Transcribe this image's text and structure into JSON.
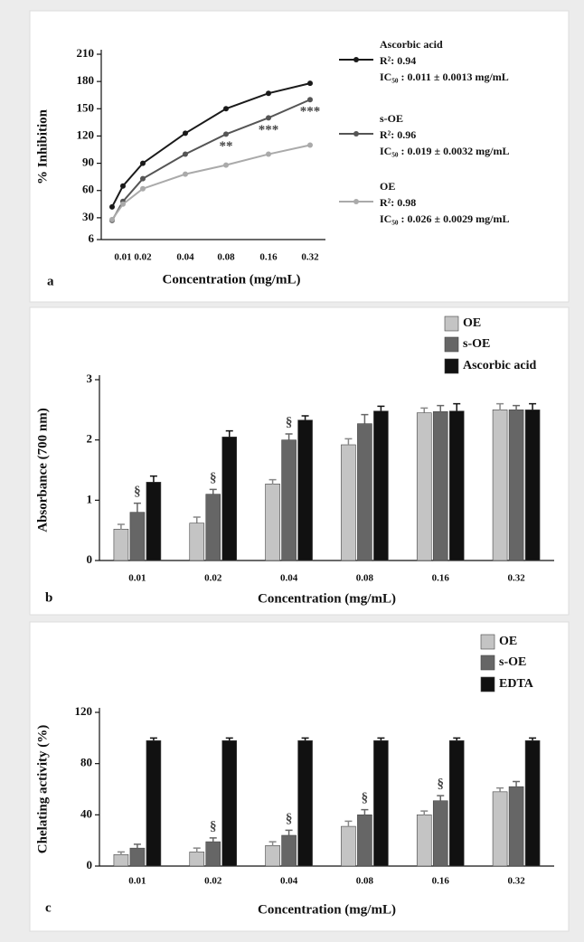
{
  "chart_data": [
    {
      "type": "line",
      "panel_label": "a",
      "x_label": "Concentration (mg/mL)",
      "y_label": "% Inhibition",
      "categories": [
        null,
        "0.01",
        "0.02",
        "0.04",
        "0.08",
        "0.16",
        "0.32"
      ],
      "ylim": [
        6,
        210
      ],
      "yticks": [
        6,
        30,
        60,
        90,
        120,
        150,
        180,
        210
      ],
      "series": [
        {
          "name": "Ascorbic acid",
          "color": "#1a1a1a",
          "notes": [
            "R²: 0.94",
            "IC₅₀ : 0.011 ± 0.0013 mg/mL"
          ],
          "values": [
            42,
            65,
            90,
            123,
            150,
            167,
            178
          ]
        },
        {
          "name": "s-OE",
          "color": "#555555",
          "notes": [
            "R²: 0.96",
            "IC₅₀ : 0.019 ± 0.0032 mg/mL"
          ],
          "values": [
            27,
            48,
            73,
            100,
            122,
            140,
            160
          ]
        },
        {
          "name": "OE",
          "color": "#aaaaaa",
          "notes": [
            "R²: 0.98",
            "IC₅₀ : 0.026 ± 0.0029 mg/mL"
          ],
          "values": [
            28,
            45,
            62,
            78,
            88,
            100,
            110
          ]
        }
      ],
      "annotations": [
        {
          "text": "**",
          "series": 1,
          "index": 4
        },
        {
          "text": "***",
          "series": 1,
          "index": 5
        },
        {
          "text": "***",
          "series": 1,
          "index": 6
        }
      ]
    },
    {
      "type": "bar",
      "panel_label": "b",
      "x_label": "Concentration (mg/mL)",
      "y_label": "Absorbance (700 nm)",
      "categories": [
        "0.01",
        "0.02",
        "0.04",
        "0.08",
        "0.16",
        "0.32"
      ],
      "ylim": [
        0,
        3
      ],
      "yticks": [
        0,
        1,
        2,
        3
      ],
      "series": [
        {
          "name": "OE",
          "color": "#c4c4c4",
          "values": [
            0.52,
            0.62,
            1.27,
            1.92,
            2.45,
            2.5
          ],
          "errors": [
            0.08,
            0.1,
            0.07,
            0.1,
            0.08,
            0.1
          ]
        },
        {
          "name": "s-OE",
          "color": "#666666",
          "values": [
            0.8,
            1.1,
            2.0,
            2.27,
            2.47,
            2.5
          ],
          "errors": [
            0.15,
            0.08,
            0.1,
            0.15,
            0.1,
            0.07
          ]
        },
        {
          "name": "Ascorbic acid",
          "color": "#111111",
          "values": [
            1.3,
            2.05,
            2.33,
            2.48,
            2.48,
            2.5
          ],
          "errors": [
            0.1,
            0.1,
            0.07,
            0.08,
            0.12,
            0.1
          ]
        }
      ],
      "annotations": [
        {
          "text": "§",
          "series": 1,
          "index": 0
        },
        {
          "text": "§",
          "series": 1,
          "index": 1
        },
        {
          "text": "§",
          "series": 1,
          "index": 2
        }
      ]
    },
    {
      "type": "bar",
      "panel_label": "c",
      "x_label": "Concentration (mg/mL)",
      "y_label": "Chelating activity (%)",
      "categories": [
        "0.01",
        "0.02",
        "0.04",
        "0.08",
        "0.16",
        "0.32"
      ],
      "ylim": [
        0,
        120
      ],
      "yticks": [
        0,
        40,
        80,
        120
      ],
      "series": [
        {
          "name": "OE",
          "color": "#c4c4c4",
          "values": [
            9,
            11,
            16,
            31,
            40,
            58
          ],
          "errors": [
            2,
            3,
            3,
            4,
            3,
            3
          ]
        },
        {
          "name": "s-OE",
          "color": "#666666",
          "values": [
            14,
            19,
            24,
            40,
            51,
            62
          ],
          "errors": [
            3,
            3,
            4,
            4,
            4,
            4
          ]
        },
        {
          "name": "EDTA",
          "color": "#111111",
          "values": [
            98,
            98,
            98,
            98,
            98,
            98
          ],
          "errors": [
            2,
            2,
            2,
            2,
            2,
            2
          ]
        }
      ],
      "annotations": [
        {
          "text": "§",
          "series": 1,
          "index": 1
        },
        {
          "text": "§",
          "series": 1,
          "index": 2
        },
        {
          "text": "§",
          "series": 1,
          "index": 3
        },
        {
          "text": "§",
          "series": 1,
          "index": 4
        }
      ]
    }
  ]
}
